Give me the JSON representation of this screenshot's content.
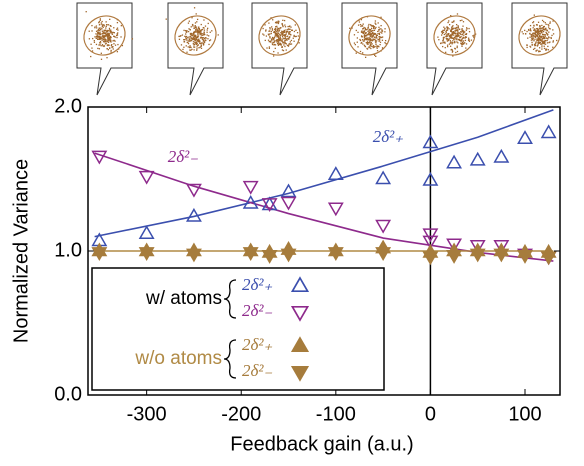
{
  "chart_data": {
    "type": "scatter",
    "xlabel": "Feedback gain (a.u.)",
    "ylabel": "Normalized Variance",
    "xlim": [
      -362,
      137
    ],
    "ylim": [
      0,
      2.0
    ],
    "xticks": [
      -300,
      -200,
      -100,
      0,
      100
    ],
    "yticks": [
      {
        "value": 0,
        "label": "0.0"
      },
      {
        "value": 1,
        "label": "1.0"
      },
      {
        "value": 2,
        "label": "2.0"
      }
    ],
    "vline": 0,
    "legend_groups": [
      {
        "label": "w/ atoms",
        "color": "#000000"
      },
      {
        "label": "w/o atoms",
        "color": "#b08a45"
      }
    ],
    "series": [
      {
        "name": "2δ²₊",
        "color": "#3b4fae",
        "marker": "up",
        "filled": false,
        "x": [
          -350,
          -300,
          -250,
          -190,
          -170,
          -150,
          -100,
          -50,
          0,
          0,
          25,
          50,
          75,
          100,
          125
        ],
        "values": [
          1.07,
          1.12,
          1.24,
          1.33,
          1.32,
          1.41,
          1.53,
          1.5,
          1.75,
          1.49,
          1.61,
          1.63,
          1.65,
          1.78,
          1.82
        ]
      },
      {
        "name": "2δ²₋",
        "color": "#8e2a8c",
        "marker": "down",
        "filled": false,
        "x": [
          -350,
          -300,
          -250,
          -190,
          -170,
          -150,
          -100,
          -50,
          0,
          0,
          25,
          50,
          75,
          100,
          125
        ],
        "values": [
          1.66,
          1.52,
          1.43,
          1.45,
          1.33,
          1.34,
          1.3,
          1.18,
          1.12,
          1.07,
          1.05,
          1.04,
          1.04,
          0.98,
          0.96
        ]
      },
      {
        "name": "2δ²₊",
        "color": "#a67c3c",
        "marker": "up",
        "filled": true,
        "x": [
          -350,
          -300,
          -250,
          -190,
          -170,
          -150,
          -100,
          -50,
          0,
          25,
          50,
          75,
          100,
          125
        ],
        "values": [
          1.0,
          1.0,
          1.0,
          1.0,
          0.99,
          1.01,
          1.0,
          1.02,
          0.99,
          1.0,
          1.0,
          1.0,
          0.99,
          0.99
        ]
      },
      {
        "name": "2δ²₋",
        "color": "#a67c3c",
        "marker": "down",
        "filled": true,
        "x": [
          -350,
          -300,
          -250,
          -190,
          -170,
          -150,
          -100,
          -50,
          0,
          25,
          50,
          75,
          100,
          125
        ],
        "values": [
          0.99,
          0.99,
          0.98,
          0.99,
          0.97,
          0.98,
          0.99,
          0.99,
          0.96,
          0.97,
          0.98,
          0.98,
          0.97,
          0.96
        ]
      }
    ],
    "fits": [
      {
        "color": "#3b4fae",
        "x": [
          -355,
          -250,
          -150,
          -50,
          50,
          130
        ],
        "values": [
          1.1,
          1.24,
          1.4,
          1.59,
          1.79,
          1.98
        ]
      },
      {
        "color": "#8e2a8c",
        "x": [
          -355,
          -250,
          -150,
          -50,
          50,
          130
        ],
        "values": [
          1.68,
          1.45,
          1.26,
          1.09,
          0.99,
          0.93
        ]
      },
      {
        "color": "#b08a45",
        "x": [
          -355,
          130
        ],
        "values": [
          1.0,
          1.0
        ]
      }
    ],
    "annotations": [
      {
        "text": "2δ²₋",
        "color": "#8e2a8c"
      },
      {
        "text": "2δ²₊",
        "color": "#3b4fae"
      }
    ]
  }
}
